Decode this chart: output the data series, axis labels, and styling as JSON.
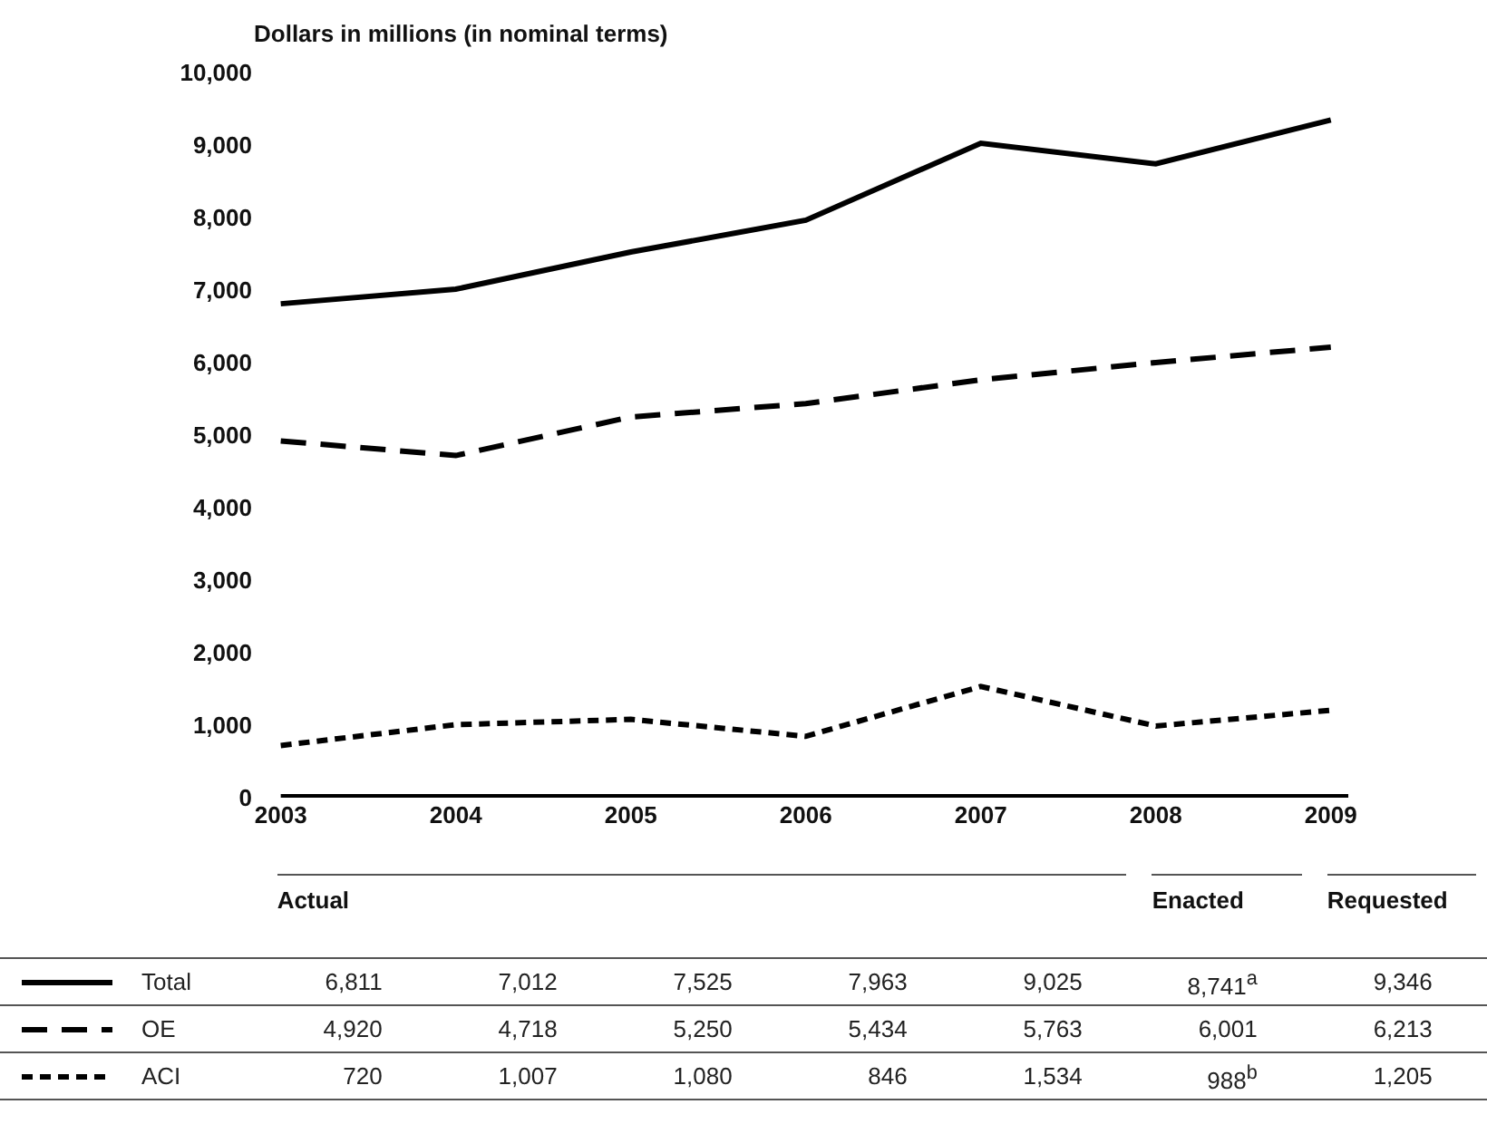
{
  "chart_data": {
    "type": "line",
    "ylabel": "Dollars in millions (in nominal terms)",
    "categories": [
      "2003",
      "2004",
      "2005",
      "2006",
      "2007",
      "2008",
      "2009"
    ],
    "series": [
      {
        "name": "Total",
        "color": "#000000",
        "line_style": "solid",
        "values": [
          6811,
          7012,
          7525,
          7963,
          9025,
          8741,
          9346
        ],
        "value_labels": [
          "6,811",
          "7,012",
          "7,525",
          "7,963",
          "9,025",
          "8,741$^{a}$",
          "9,346"
        ]
      },
      {
        "name": "OE",
        "color": "#000000",
        "line_style": "dashed",
        "values": [
          4920,
          4718,
          5250,
          5434,
          5763,
          6001,
          6213
        ],
        "value_labels": [
          "4,920",
          "4,718",
          "5,250",
          "5,434",
          "5,763",
          "6,001",
          "6,213"
        ]
      },
      {
        "name": "ACI",
        "color": "#000000",
        "line_style": "dotted",
        "values": [
          720,
          1007,
          1080,
          846,
          1534,
          988,
          1205
        ],
        "value_labels": [
          "720",
          "1,007",
          "1,080",
          "846",
          "1,534",
          "988$^{b}$",
          "1,205"
        ]
      }
    ],
    "ylim": [
      0,
      10000
    ],
    "yticks": [
      0,
      {
        "value": 1000,
        "label": "1,000"
      },
      {
        "value": 2000,
        "label": "2,000"
      },
      {
        "value": 3000,
        "label": "3,000"
      },
      {
        "value": 4000,
        "label": "4,000"
      },
      {
        "value": 5000,
        "label": "5,000"
      },
      {
        "value": 6000,
        "label": "6,000"
      },
      {
        "value": 7000,
        "label": "7,000"
      },
      {
        "value": 8000,
        "label": "8,000"
      },
      {
        "value": 9000,
        "label": "9,000"
      },
      {
        "value": 10000,
        "label": "10,000"
      }
    ],
    "annotations": [
      "Actual",
      "Enacted",
      "Requested"
    ],
    "grid": false,
    "legend": "bottom",
    "marker": "none"
  }
}
